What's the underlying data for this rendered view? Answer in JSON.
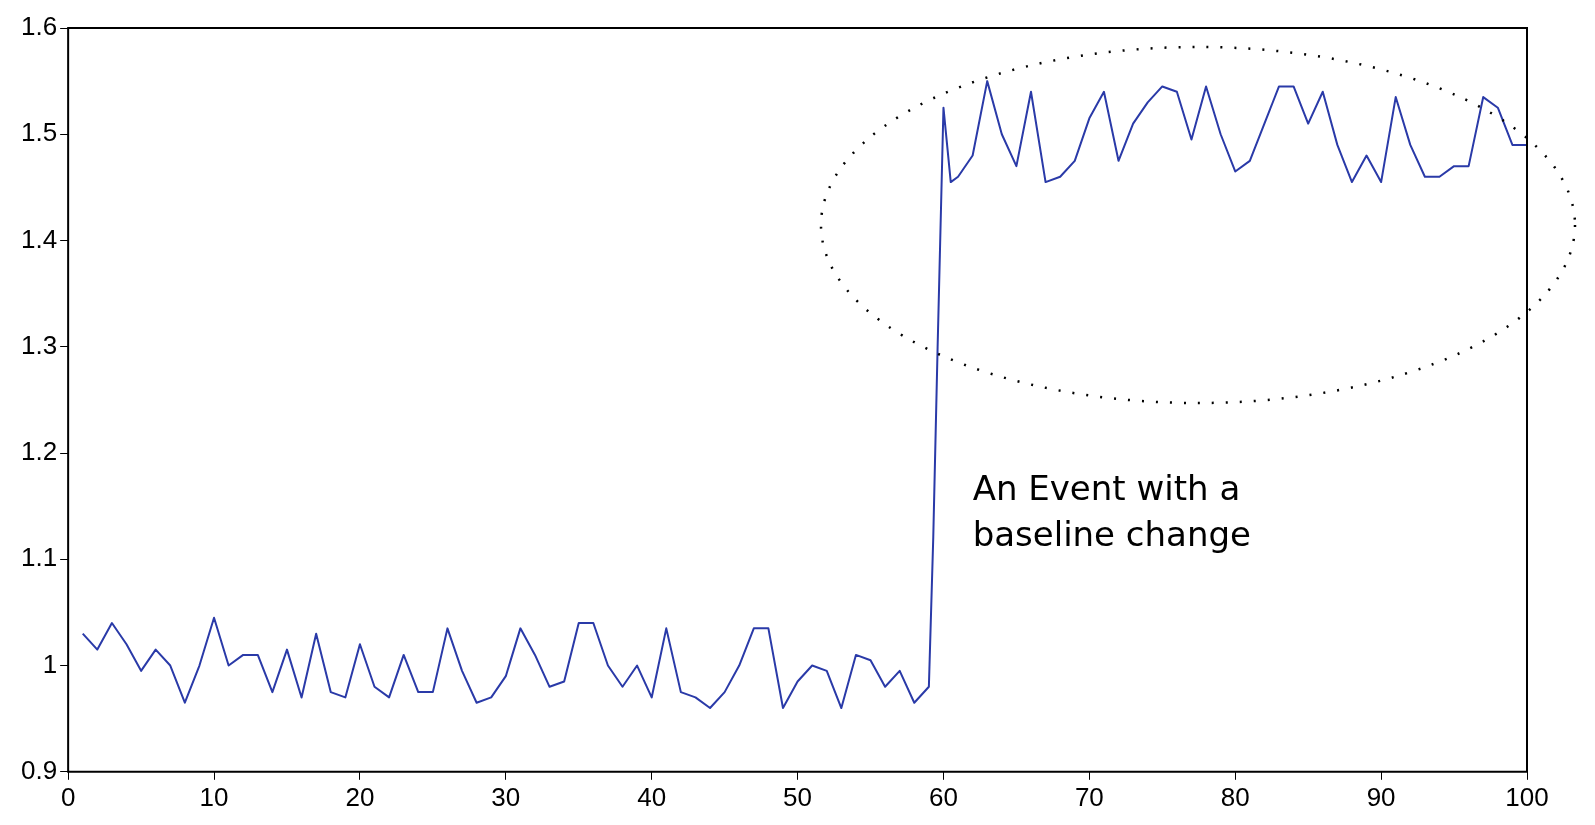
{
  "chart_data": {
    "type": "line",
    "annotations": [
      "An Event with a baseline change"
    ],
    "series": [
      {
        "color": "#2a3aa8",
        "x": [
          1,
          2,
          3,
          4,
          5,
          6,
          7,
          8,
          9,
          10,
          11,
          12,
          13,
          14,
          15,
          16,
          17,
          18,
          19,
          20,
          21,
          22,
          23,
          24,
          25,
          26,
          27,
          28,
          29,
          30,
          31,
          32,
          33,
          34,
          35,
          36,
          37,
          38,
          39,
          40,
          41,
          42,
          43,
          44,
          45,
          46,
          47,
          48,
          49,
          50,
          51,
          52,
          53,
          54,
          55,
          56,
          57,
          58,
          59,
          59.3,
          59.6,
          60,
          60.5,
          61,
          62,
          63,
          64,
          65,
          66,
          67,
          68,
          69,
          70,
          71,
          72,
          73,
          74,
          75,
          76,
          77,
          78,
          79,
          80,
          81,
          82,
          83,
          84,
          85,
          86,
          87,
          88,
          89,
          90,
          91,
          92,
          93,
          94,
          95,
          96,
          97,
          98,
          99,
          100
        ],
        "values": [
          1.03,
          1.015,
          1.04,
          1.02,
          0.995,
          1.015,
          1.0,
          0.965,
          1.0,
          1.045,
          1.0,
          1.01,
          1.01,
          0.975,
          1.015,
          0.97,
          1.03,
          0.975,
          0.97,
          1.02,
          0.98,
          0.97,
          1.01,
          0.975,
          0.975,
          1.035,
          0.995,
          0.965,
          0.97,
          0.99,
          1.035,
          1.01,
          0.98,
          0.985,
          1.04,
          1.04,
          1.0,
          0.98,
          1.0,
          0.97,
          1.035,
          0.975,
          0.97,
          0.96,
          0.975,
          1.0,
          1.035,
          1.035,
          0.96,
          0.985,
          1.0,
          0.995,
          0.96,
          1.01,
          1.005,
          0.98,
          0.995,
          0.965,
          0.98,
          1.12,
          1.3,
          1.525,
          1.455,
          1.46,
          1.48,
          1.55,
          1.5,
          1.47,
          1.54,
          1.455,
          1.46,
          1.475,
          1.515,
          1.54,
          1.475,
          1.51,
          1.53,
          1.545,
          1.54,
          1.495,
          1.545,
          1.5,
          1.465,
          1.475,
          1.51,
          1.545,
          1.545,
          1.51,
          1.54,
          1.49,
          1.455,
          1.48,
          1.455,
          1.535,
          1.49,
          1.46,
          1.46,
          1.47,
          1.47,
          1.535,
          1.525,
          1.49,
          1.49
        ]
      }
    ],
    "xlim": [
      0,
      100
    ],
    "xticks": [
      0,
      10,
      20,
      30,
      40,
      50,
      60,
      70,
      80,
      90,
      100
    ],
    "ylim": [
      0.9,
      1.6
    ],
    "yticks": [
      0.9,
      1,
      1.1,
      1.2,
      1.3,
      1.4,
      1.5,
      1.6
    ],
    "grid": false,
    "legend": false,
    "marker": "none",
    "line_style": "solid"
  }
}
